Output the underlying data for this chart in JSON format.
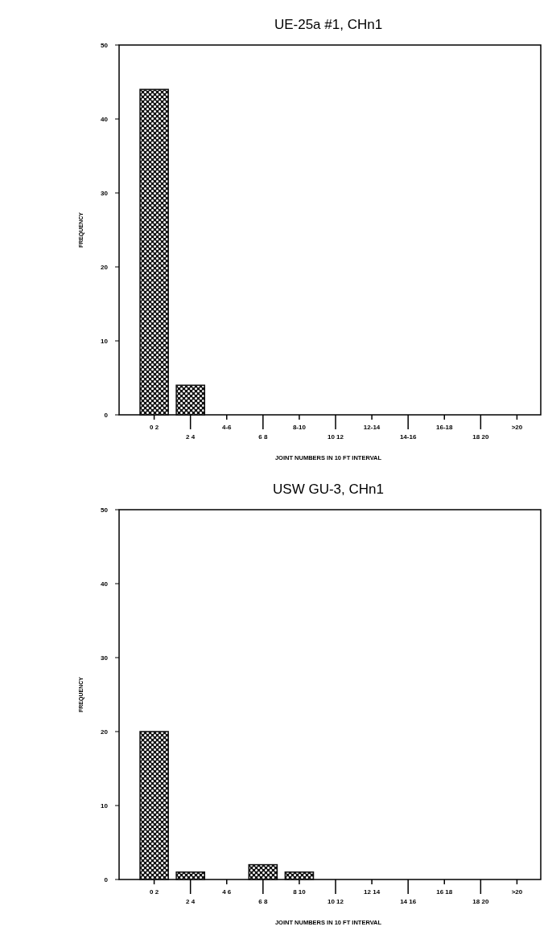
{
  "chart_data": [
    {
      "type": "bar",
      "title": "UE-25a #1, CHn1",
      "xlabel": "JOINT NUMBERS IN 10 FT INTERVAL",
      "ylabel": "FREQUENCY",
      "categories": [
        "0 2",
        "2 4",
        "4-6",
        "6 8",
        "8-10",
        "10 12",
        "12-14",
        "14-16",
        "16-18",
        "18 20",
        ">20"
      ],
      "values": [
        44,
        4,
        0,
        0,
        0,
        0,
        0,
        0,
        0,
        0,
        0
      ],
      "color": "#111111",
      "ylim": [
        0,
        50
      ],
      "yticks": [
        0,
        10,
        20,
        30,
        40,
        50
      ],
      "grid": false
    },
    {
      "type": "bar",
      "title": "USW GU-3, CHn1",
      "xlabel": "JOINT NUMBERS IN 10 FT INTERVAL",
      "ylabel": "FREQUENCY",
      "categories": [
        "0 2",
        "2 4",
        "4 6",
        "6 8",
        "8 10",
        "10 12",
        "12 14",
        "14 16",
        "16 18",
        "18 20",
        ">20"
      ],
      "values": [
        20,
        1,
        0,
        2,
        1,
        0,
        0,
        0,
        0,
        0,
        0
      ],
      "color": "#111111",
      "ylim": [
        0,
        50
      ],
      "yticks": [
        0,
        10,
        20,
        30,
        40,
        50
      ],
      "grid": false
    }
  ]
}
